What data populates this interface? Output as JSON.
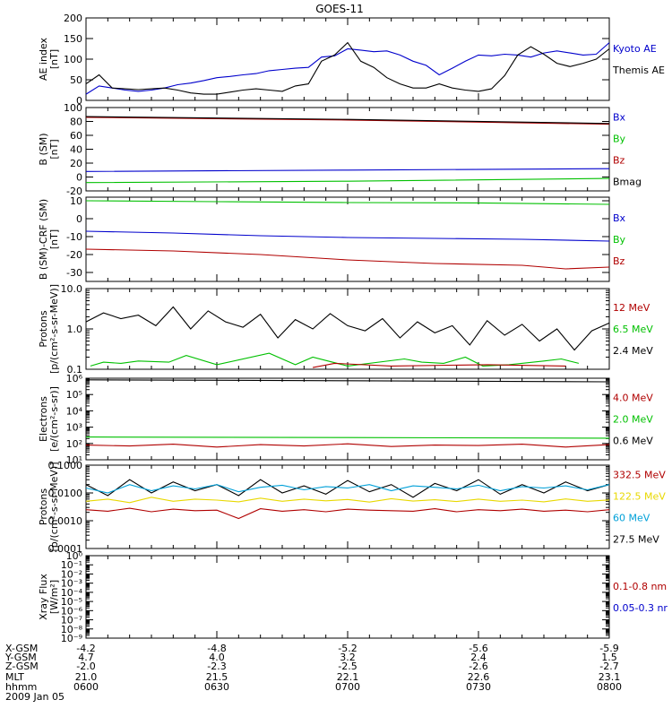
{
  "title": "GOES-11",
  "colors": {
    "black": "#000000",
    "blue": "#0000cc",
    "green": "#00c000",
    "red": "#b00000",
    "yellow": "#e8d800",
    "cyan": "#00a0d8"
  },
  "chart_data": [
    {
      "type": "line",
      "ylabel": [
        "AE index",
        "[nT]"
      ],
      "ylim": [
        0,
        200
      ],
      "scale": "linear",
      "ticks": [
        "0",
        "50",
        "100",
        "150",
        "200"
      ],
      "tickvals": [
        0,
        50,
        100,
        150,
        200
      ],
      "series": [
        {
          "name": "Kyoto AE",
          "color": "#0000cc",
          "x": [
            0,
            3,
            6,
            9,
            12,
            15,
            18,
            21,
            24,
            27,
            30,
            33,
            36,
            39,
            42,
            45,
            48,
            51,
            54,
            57,
            60,
            63,
            66,
            69,
            72,
            75,
            78,
            81,
            84,
            87,
            90,
            93,
            96,
            99,
            102,
            105,
            108,
            111,
            114,
            117,
            120
          ],
          "values": [
            15,
            35,
            30,
            25,
            22,
            25,
            30,
            38,
            42,
            48,
            55,
            58,
            62,
            65,
            72,
            75,
            78,
            80,
            105,
            108,
            125,
            122,
            118,
            120,
            110,
            95,
            85,
            62,
            78,
            95,
            110,
            108,
            112,
            110,
            105,
            115,
            120,
            115,
            110,
            112,
            140
          ]
        },
        {
          "name": "Themis AE",
          "color": "#000000",
          "x": [
            0,
            3,
            6,
            9,
            12,
            15,
            18,
            21,
            24,
            27,
            30,
            33,
            36,
            39,
            42,
            45,
            48,
            51,
            54,
            57,
            60,
            63,
            66,
            69,
            72,
            75,
            78,
            81,
            84,
            87,
            90,
            93,
            96,
            99,
            102,
            105,
            108,
            111,
            114,
            117,
            120
          ],
          "values": [
            40,
            62,
            30,
            28,
            26,
            28,
            30,
            25,
            18,
            15,
            15,
            20,
            25,
            28,
            25,
            22,
            35,
            40,
            95,
            110,
            140,
            95,
            80,
            55,
            40,
            30,
            30,
            40,
            30,
            25,
            22,
            28,
            60,
            110,
            130,
            112,
            90,
            82,
            90,
            100,
            125
          ]
        }
      ],
      "legend": [
        {
          "label": "Kyoto AE",
          "color": "#0000cc"
        },
        {
          "label": "Themis AE",
          "color": "#000000"
        }
      ]
    },
    {
      "type": "line",
      "ylabel": [
        "B (SM)",
        "[nT]"
      ],
      "ylim": [
        -20,
        100
      ],
      "scale": "linear",
      "ticks": [
        "-20",
        "0",
        "20",
        "40",
        "60",
        "80",
        "100"
      ],
      "tickvals": [
        -20,
        0,
        20,
        40,
        60,
        80,
        100
      ],
      "series": [
        {
          "name": "Bx",
          "color": "#0000cc",
          "x": [
            0,
            60,
            120
          ],
          "values": [
            8,
            10,
            12
          ]
        },
        {
          "name": "By",
          "color": "#00c000",
          "x": [
            0,
            60,
            120
          ],
          "values": [
            -8,
            -6,
            -2
          ]
        },
        {
          "name": "Bz",
          "color": "#b00000",
          "x": [
            0,
            60,
            120
          ],
          "values": [
            86,
            82,
            76
          ]
        },
        {
          "name": "Bmag",
          "color": "#000000",
          "x": [
            0,
            60,
            120
          ],
          "values": [
            87,
            83,
            77
          ]
        }
      ],
      "legend": [
        {
          "label": "Bx",
          "color": "#0000cc"
        },
        {
          "label": "By",
          "color": "#00c000"
        },
        {
          "label": "Bz",
          "color": "#b00000"
        },
        {
          "label": "Bmag",
          "color": "#000000"
        }
      ]
    },
    {
      "type": "line",
      "ylabel": [
        "B (SM)-CRF (SM)",
        "[nT]"
      ],
      "ylim": [
        -35,
        12
      ],
      "scale": "linear",
      "ticks": [
        "-30",
        "-20",
        "-10",
        "0",
        "10"
      ],
      "tickvals": [
        -30,
        -20,
        -10,
        0,
        10
      ],
      "series": [
        {
          "name": "Bx",
          "color": "#0000cc",
          "x": [
            0,
            20,
            40,
            60,
            80,
            100,
            120
          ],
          "values": [
            -7,
            -8,
            -9.5,
            -10.5,
            -11,
            -11.5,
            -12.5
          ]
        },
        {
          "name": "By",
          "color": "#00c000",
          "x": [
            0,
            30,
            60,
            90,
            120
          ],
          "values": [
            10,
            9.5,
            9,
            8.8,
            8
          ]
        },
        {
          "name": "Bz",
          "color": "#b00000",
          "x": [
            0,
            20,
            40,
            60,
            80,
            100,
            110,
            120
          ],
          "values": [
            -17,
            -18,
            -20,
            -23,
            -25,
            -26,
            -28,
            -27
          ]
        }
      ],
      "legend": [
        {
          "label": "Bx",
          "color": "#0000cc"
        },
        {
          "label": "By",
          "color": "#00c000"
        },
        {
          "label": "Bz",
          "color": "#b00000"
        }
      ]
    },
    {
      "type": "line",
      "ylabel": [
        "Protons",
        "[p/(cm²-s-sr-MeV)]"
      ],
      "ylim": [
        0.1,
        10
      ],
      "scale": "log",
      "ticks": [
        "0.1",
        "1.0",
        "10.0"
      ],
      "tickvals": [
        0.1,
        1,
        10
      ],
      "series": [
        {
          "name": "2.4 MeV",
          "color": "#000000",
          "x": [
            0,
            4,
            8,
            12,
            16,
            20,
            24,
            28,
            32,
            36,
            40,
            44,
            48,
            52,
            56,
            60,
            64,
            68,
            72,
            76,
            80,
            84,
            88,
            92,
            96,
            100,
            104,
            108,
            112,
            116,
            120
          ],
          "values": [
            1.5,
            2.5,
            1.8,
            2.2,
            1.2,
            3.5,
            1.0,
            2.8,
            1.5,
            1.1,
            2.3,
            0.6,
            1.7,
            1.0,
            2.4,
            1.2,
            0.9,
            1.8,
            0.6,
            1.5,
            0.8,
            1.2,
            0.4,
            1.6,
            0.7,
            1.3,
            0.5,
            1.0,
            0.3,
            0.9,
            1.4
          ]
        },
        {
          "name": "6.5 MeV",
          "color": "#00c000",
          "x": [
            1,
            4,
            8,
            12,
            19,
            23,
            30,
            42,
            48,
            52,
            60,
            73,
            77,
            82,
            87,
            91,
            97,
            105,
            109,
            113
          ],
          "values": [
            0.12,
            0.15,
            0.14,
            0.16,
            0.15,
            0.22,
            0.13,
            0.25,
            0.13,
            0.2,
            0.12,
            0.18,
            0.15,
            0.14,
            0.2,
            0.12,
            0.13,
            0.16,
            0.18,
            0.14
          ]
        },
        {
          "name": "12 MeV",
          "color": "#b00000",
          "x": [
            52,
            57,
            70,
            92,
            110
          ],
          "values": [
            0.11,
            0.14,
            0.12,
            0.13,
            0.12
          ]
        }
      ],
      "legend": [
        {
          "label": "12 MeV",
          "color": "#b00000"
        },
        {
          "label": "6.5 MeV",
          "color": "#00c000"
        },
        {
          "label": "2.4 MeV",
          "color": "#000000"
        }
      ]
    },
    {
      "type": "line",
      "ylabel": [
        "Electrons",
        "[e/(cm²-s-sr)]"
      ],
      "ylim": [
        10,
        1000000
      ],
      "scale": "log",
      "ticks": [
        "10¹",
        "10²",
        "10³",
        "10⁴",
        "10⁵",
        "10⁶"
      ],
      "tickvals": [
        10,
        100,
        1000,
        10000,
        100000,
        1000000
      ],
      "series": [
        {
          "name": "0.6 MeV",
          "color": "#000000",
          "x": [
            0,
            60,
            120
          ],
          "values": [
            800000,
            700000,
            600000
          ]
        },
        {
          "name": "2.0 MeV",
          "color": "#00c000",
          "x": [
            0,
            60,
            120
          ],
          "values": [
            250,
            230,
            210
          ]
        },
        {
          "name": "4.0 MeV",
          "color": "#b00000",
          "x": [
            0,
            10,
            20,
            30,
            40,
            50,
            60,
            70,
            80,
            90,
            100,
            110,
            120
          ],
          "values": [
            80,
            70,
            90,
            60,
            85,
            70,
            95,
            65,
            80,
            75,
            90,
            60,
            85
          ]
        }
      ],
      "legend": [
        {
          "label": "4.0 MeV",
          "color": "#b00000"
        },
        {
          "label": "2.0 MeV",
          "color": "#00c000"
        },
        {
          "label": "0.6 MeV",
          "color": "#000000"
        }
      ]
    },
    {
      "type": "line",
      "ylabel": [
        "Protons",
        "[p/(cm²-s-sr-MeV)]"
      ],
      "ylim": [
        0.0001,
        0.1
      ],
      "scale": "log",
      "ticks": [
        "0.0001",
        "0.0010",
        "0.0100",
        "0.1000"
      ],
      "tickvals": [
        0.0001,
        0.001,
        0.01,
        0.1
      ],
      "series": [
        {
          "name": "27.5 MeV",
          "color": "#000000",
          "x": [
            0,
            5,
            10,
            15,
            20,
            25,
            30,
            35,
            40,
            45,
            50,
            55,
            60,
            65,
            70,
            75,
            80,
            85,
            90,
            95,
            100,
            105,
            110,
            115,
            120
          ],
          "values": [
            0.02,
            0.008,
            0.03,
            0.01,
            0.025,
            0.012,
            0.02,
            0.008,
            0.03,
            0.01,
            0.018,
            0.009,
            0.028,
            0.011,
            0.02,
            0.007,
            0.022,
            0.012,
            0.03,
            0.009,
            0.02,
            0.01,
            0.025,
            0.012,
            0.02
          ]
        },
        {
          "name": "60 MeV",
          "color": "#00a0d8",
          "x": [
            0,
            5,
            10,
            15,
            20,
            25,
            30,
            35,
            40,
            45,
            50,
            55,
            60,
            65,
            70,
            75,
            80,
            85,
            90,
            95,
            100,
            105,
            110,
            115,
            120
          ],
          "values": [
            0.015,
            0.01,
            0.02,
            0.012,
            0.018,
            0.014,
            0.02,
            0.011,
            0.016,
            0.019,
            0.013,
            0.017,
            0.015,
            0.02,
            0.012,
            0.018,
            0.016,
            0.014,
            0.019,
            0.012,
            0.017,
            0.015,
            0.018,
            0.013,
            0.02
          ]
        },
        {
          "name": "122.5 MeV",
          "color": "#e8d800",
          "x": [
            0,
            5,
            10,
            15,
            20,
            25,
            30,
            35,
            40,
            45,
            50,
            55,
            60,
            65,
            70,
            75,
            80,
            85,
            90,
            95,
            100,
            105,
            110,
            115,
            120
          ],
          "values": [
            0.005,
            0.006,
            0.0045,
            0.007,
            0.005,
            0.006,
            0.0055,
            0.0048,
            0.0065,
            0.005,
            0.006,
            0.0052,
            0.0058,
            0.0047,
            0.0062,
            0.0051,
            0.0057,
            0.0049,
            0.006,
            0.005,
            0.0055,
            0.0048,
            0.0061,
            0.005,
            0.0056
          ]
        },
        {
          "name": "332.5 MeV",
          "color": "#b00000",
          "x": [
            0,
            5,
            10,
            15,
            20,
            25,
            30,
            35,
            40,
            45,
            50,
            55,
            60,
            65,
            70,
            75,
            80,
            85,
            90,
            95,
            100,
            105,
            110,
            115,
            120
          ],
          "values": [
            0.0025,
            0.0022,
            0.0028,
            0.0021,
            0.0026,
            0.0023,
            0.0024,
            0.0012,
            0.0027,
            0.0022,
            0.0025,
            0.0021,
            0.0026,
            0.0024,
            0.0023,
            0.0022,
            0.0027,
            0.0021,
            0.0025,
            0.0023,
            0.0026,
            0.0022,
            0.0024,
            0.0021,
            0.0025
          ]
        }
      ],
      "legend": [
        {
          "label": "332.5 MeV",
          "color": "#b00000"
        },
        {
          "label": "122.5 MeV",
          "color": "#e8d800"
        },
        {
          "label": "60 MeV",
          "color": "#00a0d8"
        },
        {
          "label": "27.5 MeV",
          "color": "#000000"
        }
      ]
    },
    {
      "type": "line",
      "ylabel": [
        "Xray Flux",
        "[W/m²]"
      ],
      "ylim": [
        1e-09,
        1
      ],
      "scale": "log",
      "ticks": [
        "10⁻⁹",
        "10⁻⁸",
        "10⁻⁷",
        "10⁻⁶",
        "10⁻⁵",
        "10⁻⁴",
        "10⁻³",
        "10⁻²",
        "10⁻¹",
        "10⁰"
      ],
      "tickvals": [
        1e-09,
        1e-08,
        1e-07,
        1e-06,
        1e-05,
        0.0001,
        0.001,
        0.01,
        0.1,
        1
      ],
      "series": [],
      "legend": [
        {
          "label": "0.1-0.8 nm",
          "color": "#b00000"
        },
        {
          "label": "0.05-0.3 nr",
          "color": "#0000cc"
        }
      ]
    }
  ],
  "xaxis": {
    "range": [
      0,
      120
    ],
    "tickpos": [
      0,
      30,
      60,
      90,
      120
    ],
    "row_labels": [
      "X-GSM",
      "Y-GSM",
      "Z-GSM",
      "MLT",
      "hhmm",
      "2009 Jan 05"
    ],
    "columns": [
      [
        "-4.2",
        "4.7",
        "-2.0",
        "21.0",
        "0600"
      ],
      [
        "-4.8",
        "4.0",
        "-2.3",
        "21.5",
        "0630"
      ],
      [
        "-5.2",
        "3.2",
        "-2.5",
        "22.1",
        "0700"
      ],
      [
        "-5.6",
        "2.4",
        "-2.6",
        "22.6",
        "0730"
      ],
      [
        "-5.9",
        "1.5",
        "-2.7",
        "23.1",
        "0800"
      ]
    ]
  }
}
